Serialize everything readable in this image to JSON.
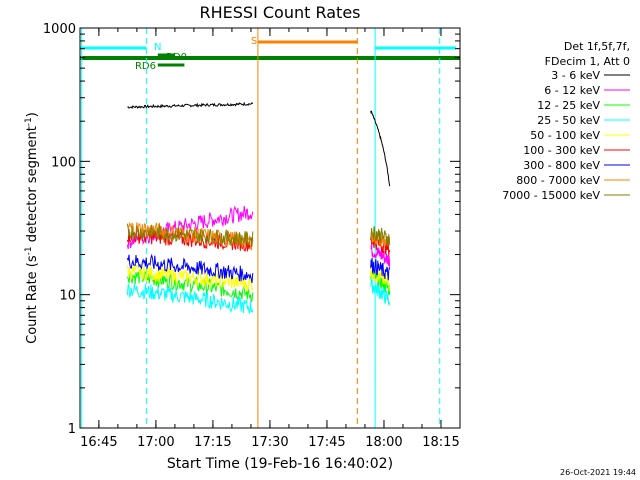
{
  "chart_data": {
    "type": "line",
    "title": "RHESSI Count Rates",
    "xlabel": "Start Time (19-Feb-16 16:40:02)",
    "ylabel_main": "Count Rate (s",
    "ylabel_sup1": "-1",
    "ylabel_mid": " detector segment",
    "ylabel_sup2": "-1",
    "ylabel_end": ")",
    "footer": "26-Oct-2021 19:44",
    "y_scale": "log",
    "xlim": [
      "16:40:02",
      "18:20:00"
    ],
    "ylim": [
      1,
      1000
    ],
    "x_ticks": [
      "16:45",
      "17:00",
      "17:15",
      "17:30",
      "17:45",
      "18:00",
      "18:15"
    ],
    "y_ticks": [
      "1",
      "10",
      "100",
      "1000"
    ],
    "legend_header": [
      "Det 1f,5f,7f,",
      "FDecim 1, Att 0"
    ],
    "series": [
      {
        "name": "3 - 6 keV",
        "color": "#000000",
        "values_desc": "",
        "seg1": [
          255,
          270
        ],
        "seg2": [
          240,
          65
        ]
      },
      {
        "name": "6 - 12 keV",
        "color": "#ff00ff",
        "seg1": [
          25,
          42
        ],
        "seg2": [
          22,
          18
        ]
      },
      {
        "name": "12 - 25 keV",
        "color": "#00ff00",
        "seg1": [
          14,
          10
        ],
        "seg2": [
          14,
          11
        ]
      },
      {
        "name": "25 - 50 keV",
        "color": "#00ffff",
        "seg1": [
          11,
          8
        ],
        "seg2": [
          12,
          9
        ]
      },
      {
        "name": "50 - 100 keV",
        "color": "#ffff00",
        "seg1": [
          15,
          12
        ],
        "seg2": [
          15,
          12
        ]
      },
      {
        "name": "100 - 300 keV",
        "color": "#ff0000",
        "seg1": [
          28,
          24
        ],
        "seg2": [
          26,
          22
        ]
      },
      {
        "name": "300 - 800 keV",
        "color": "#0000ff",
        "seg1": [
          18,
          14
        ],
        "seg2": [
          17,
          14
        ]
      },
      {
        "name": "800 - 7000 keV",
        "color": "#ff8000",
        "seg1": [
          32,
          25
        ],
        "seg2": [
          28,
          24
        ]
      },
      {
        "name": "7000 - 15000 keV",
        "color": "#808000",
        "seg1": [
          30,
          26
        ],
        "seg2": [
          30,
          26
        ]
      }
    ],
    "annotations": {
      "night_label": "N",
      "saa_label": "S",
      "rd0_label": "RD0",
      "rd6_label": "RD6"
    }
  }
}
